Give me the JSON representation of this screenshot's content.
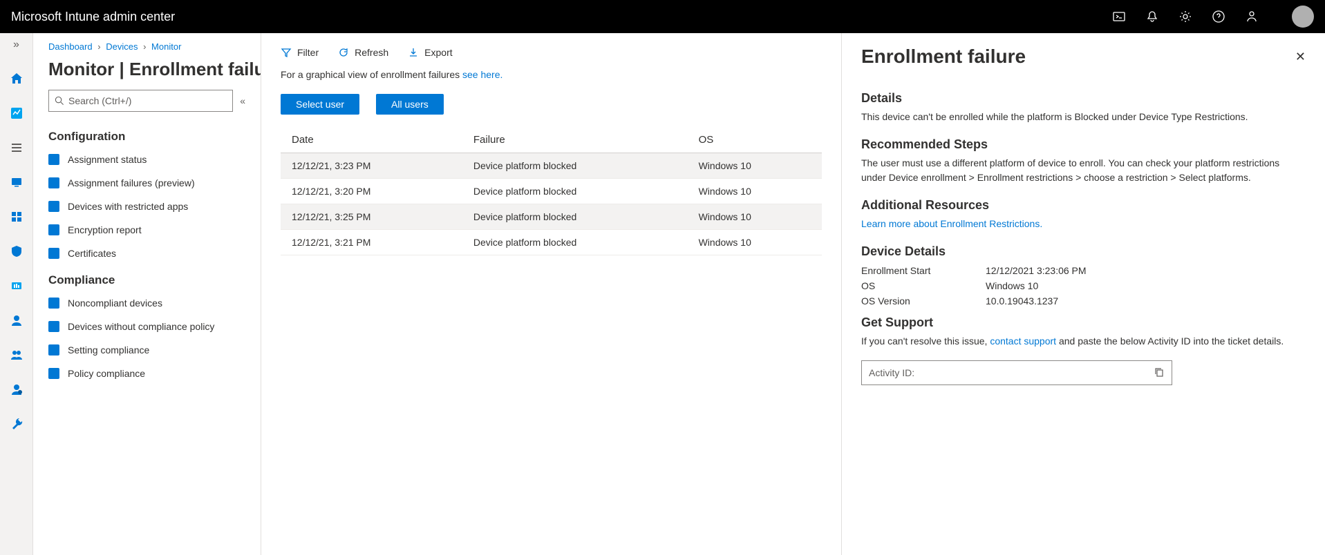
{
  "header": {
    "brand": "Microsoft Intune admin center"
  },
  "breadcrumbs": {
    "a": "Dashboard",
    "b": "Devices",
    "c": "Monitor"
  },
  "pageTitle": "Monitor | Enrollment failures",
  "search": {
    "placeholder": "Search (Ctrl+/)"
  },
  "menu": {
    "configuration": {
      "title": "Configuration",
      "items": [
        "Assignment status",
        "Assignment failures (preview)",
        "Devices with restricted apps",
        "Encryption report",
        "Certificates"
      ]
    },
    "compliance": {
      "title": "Compliance",
      "items": [
        "Noncompliant devices",
        "Devices without compliance policy",
        "Setting compliance",
        "Policy compliance"
      ]
    }
  },
  "toolbar": {
    "filter": "Filter",
    "refresh": "Refresh",
    "export": "Export"
  },
  "hint": {
    "prefix": "For a graphical view of enrollment failures ",
    "link": "see here."
  },
  "buttons": {
    "selectUser": "Select user",
    "allUsers": "All users"
  },
  "table": {
    "cols": [
      "Date",
      "Failure",
      "OS"
    ],
    "rows": [
      [
        "12/12/21, 3:23 PM",
        "Device platform blocked",
        "Windows 10"
      ],
      [
        "12/12/21, 3:20 PM",
        "Device platform blocked",
        "Windows 10"
      ],
      [
        "12/12/21, 3:25 PM",
        "Device platform blocked",
        "Windows 10"
      ],
      [
        "12/12/21, 3:21 PM",
        "Device platform blocked",
        "Windows 10"
      ]
    ]
  },
  "flyout": {
    "title": "Enrollment failure",
    "details": {
      "h": "Details",
      "p": "This device can't be enrolled while the platform is Blocked under Device Type Restrictions."
    },
    "steps": {
      "h": "Recommended Steps",
      "p": "The user must use a different platform of device to enroll.  You can check your platform restrictions under Device enrollment > Enrollment restrictions > choose a restriction > Select platforms."
    },
    "resources": {
      "h": "Additional Resources",
      "link": "Learn more about Enrollment Restrictions."
    },
    "deviceDetails": {
      "h": "Device Details",
      "rows": [
        {
          "l": "Enrollment Start",
          "v": "12/12/2021 3:23:06 PM"
        },
        {
          "l": "OS",
          "v": "Windows 10"
        },
        {
          "l": "OS Version",
          "v": "10.0.19043.1237"
        }
      ]
    },
    "support": {
      "h": "Get Support",
      "p1": "If you can't resolve this issue, ",
      "link": "contact support",
      "p2": " and paste the below Activity ID into the ticket details."
    },
    "activity": {
      "label": "Activity ID:"
    }
  },
  "railColors": [
    "#0078d4",
    "#00a4ef",
    "#605e5c",
    "#0078d4",
    "#0078d4",
    "#00a4ef",
    "#0078d4",
    "#005a9e",
    "#0078d4",
    "#0078d4",
    "#0078d4"
  ]
}
